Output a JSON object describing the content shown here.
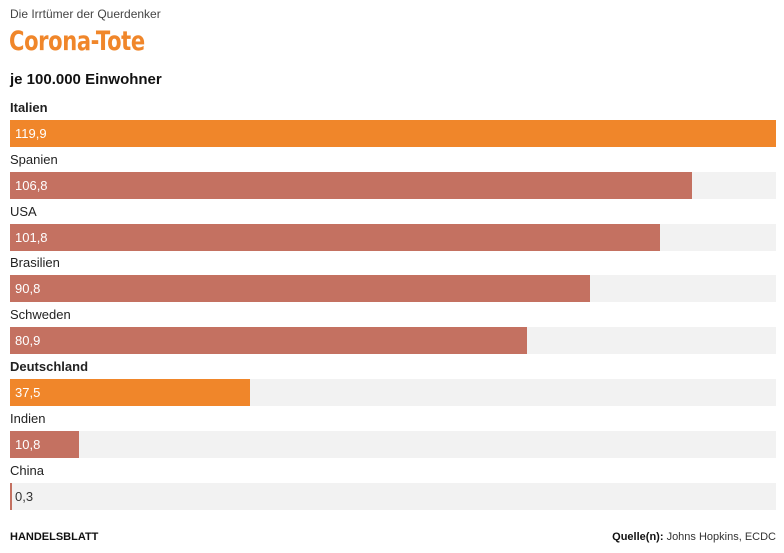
{
  "kicker": "Die Irrtümer der Querdenker",
  "chart_data": {
    "type": "bar",
    "orientation": "horizontal",
    "title": "Corona-Tote",
    "subtitle": "je 100.000 Einwohner",
    "categories": [
      "Italien",
      "Spanien",
      "USA",
      "Brasilien",
      "Schweden",
      "Deutschland",
      "Indien",
      "China"
    ],
    "values": [
      119.9,
      106.8,
      101.8,
      90.8,
      80.9,
      37.5,
      10.8,
      0.3
    ],
    "value_labels": [
      "119,9",
      "106,8",
      "101,8",
      "90,8",
      "80,9",
      "37,5",
      "10,8",
      "0,3"
    ],
    "highlighted": [
      "Italien",
      "Deutschland"
    ],
    "xlim": [
      0,
      119.9
    ],
    "grid": false,
    "colors": {
      "highlight": "#f0862a",
      "default": "#c47161",
      "track": "#f2f2f2"
    }
  },
  "footer": {
    "brand": "HANDELSBLATT",
    "source_label": "Quelle(n):",
    "source_text": "Johns Hopkins, ECDC"
  }
}
